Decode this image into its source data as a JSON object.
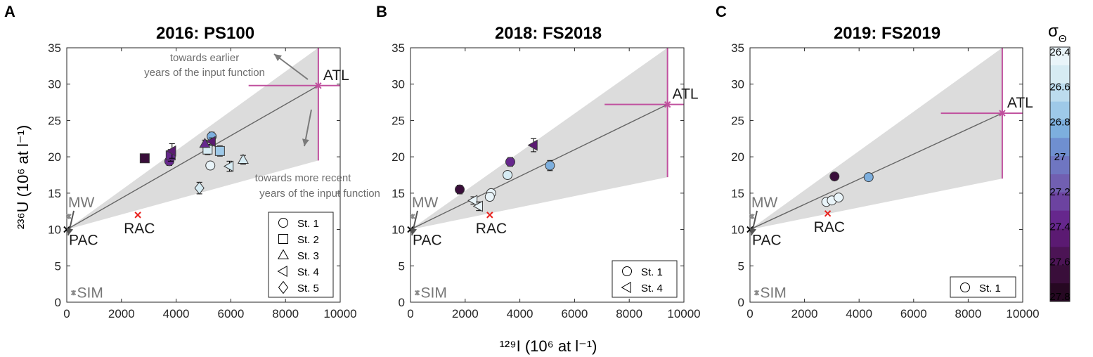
{
  "figure": {
    "ylabel": "²³⁶U (10⁶ at l⁻¹)",
    "xlabel": "¹²⁹I (10⁶ at l⁻¹)",
    "colorbar": {
      "symbol": "σΘ",
      "ticks": [
        "26.4",
        "26.6",
        "26.8",
        "27",
        "27.2",
        "27.4",
        "27.6",
        "27.8"
      ],
      "colors": [
        "#e9f4f9",
        "#d6ebf3",
        "#bcdcee",
        "#9ec9e8",
        "#7dafde",
        "#6f8fd0",
        "#6f76c1",
        "#715fb1",
        "#6c43a0",
        "#66278d",
        "#5b1a72",
        "#4c1455",
        "#390e3a",
        "#260822"
      ]
    }
  },
  "chart_data": [
    {
      "type": "scatter",
      "panel": "A",
      "title": "2016: PS100",
      "xlim": [
        0,
        10000
      ],
      "ylim": [
        0,
        35
      ],
      "xticks": [
        "0",
        "2000",
        "4000",
        "6000",
        "8000",
        "10000"
      ],
      "yticks": [
        "0",
        "5",
        "10",
        "15",
        "20",
        "25",
        "30",
        "35"
      ],
      "wedge": {
        "origin": [
          0,
          10
        ],
        "upper_end": [
          9200,
          35
        ],
        "lower_end": [
          9200,
          19.5
        ]
      },
      "mix_line": {
        "from": [
          0,
          10
        ],
        "to": [
          9200,
          29.8
        ]
      },
      "refs": [
        {
          "label": "PAC",
          "x": 0,
          "y": 10,
          "color": "#000000"
        },
        {
          "label": "RAC",
          "x": 2600,
          "y": 12,
          "color": "#e8211d"
        },
        {
          "label": "ATL",
          "x": 9200,
          "y": 29.8,
          "color": "#c0509e",
          "xerr": [
            6650,
            10000
          ],
          "yerr": [
            19.5,
            35
          ]
        },
        {
          "label": "MW",
          "x": 0,
          "y": 11.8,
          "color": "#8a8a8a"
        },
        {
          "label": "SIM",
          "x": 400,
          "y": 1,
          "color": "#8a8a8a"
        }
      ],
      "annotations": [
        "towards earlier",
        "years of the input function",
        "towards more recent",
        "years of the input function"
      ],
      "legend": [
        "St. 1",
        "St. 2",
        "St. 3",
        "St. 4",
        "St. 5"
      ],
      "points": [
        {
          "marker": "circle",
          "x": 3750,
          "y": 19.4,
          "err": 0.6,
          "sigma": 27.4
        },
        {
          "marker": "circle",
          "x": 5300,
          "y": 22.8,
          "err": 0.6,
          "sigma": 26.9
        },
        {
          "marker": "circle",
          "x": 5250,
          "y": 18.8,
          "err": 0.5,
          "sigma": 26.4
        },
        {
          "marker": "square",
          "x": 2850,
          "y": 19.8,
          "err": 0.5,
          "sigma": 27.6
        },
        {
          "marker": "square",
          "x": 3800,
          "y": 20.2,
          "err": 0.8,
          "sigma": 27.4
        },
        {
          "marker": "square",
          "x": 5150,
          "y": 21.0,
          "err": 0.7,
          "sigma": 26.5
        },
        {
          "marker": "square",
          "x": 5600,
          "y": 20.8,
          "err": 0.7,
          "sigma": 26.7
        },
        {
          "marker": "triangle",
          "x": 5050,
          "y": 21.8,
          "err": 0.5,
          "sigma": 27.4
        },
        {
          "marker": "triangle",
          "x": 6450,
          "y": 19.6,
          "err": 0.6,
          "sigma": 26.5
        },
        {
          "marker": "tri-left",
          "x": 3850,
          "y": 20.8,
          "err": 1.0,
          "sigma": 27.5
        },
        {
          "marker": "tri-left",
          "x": 5300,
          "y": 22.1,
          "err": 0.5,
          "sigma": 27.5
        },
        {
          "marker": "tri-left",
          "x": 5950,
          "y": 18.7,
          "err": 0.7,
          "sigma": 26.5
        },
        {
          "marker": "diamond",
          "x": 4850,
          "y": 15.7,
          "err": 0.8,
          "sigma": 26.5
        }
      ]
    },
    {
      "type": "scatter",
      "panel": "B",
      "title": "2018: FS2018",
      "xlim": [
        0,
        10000
      ],
      "ylim": [
        0,
        35
      ],
      "xticks": [
        "0",
        "2000",
        "4000",
        "6000",
        "8000",
        "10000"
      ],
      "yticks": [
        "0",
        "5",
        "10",
        "15",
        "20",
        "25",
        "30",
        "35"
      ],
      "wedge": {
        "origin": [
          0,
          10
        ],
        "upper_end": [
          9400,
          35
        ],
        "lower_end": [
          9400,
          17.2
        ]
      },
      "mix_line": {
        "from": [
          0,
          10
        ],
        "to": [
          9400,
          27.2
        ]
      },
      "refs": [
        {
          "label": "PAC",
          "x": 0,
          "y": 10,
          "color": "#000000"
        },
        {
          "label": "RAC",
          "x": 2900,
          "y": 12,
          "color": "#e8211d"
        },
        {
          "label": "ATL",
          "x": 9400,
          "y": 27.2,
          "color": "#c0509e",
          "xerr": [
            7100,
            10000
          ],
          "yerr": [
            17.2,
            35
          ]
        },
        {
          "label": "MW",
          "x": 0,
          "y": 11.8,
          "color": "#8a8a8a"
        },
        {
          "label": "SIM",
          "x": 400,
          "y": 1,
          "color": "#8a8a8a"
        }
      ],
      "legend": [
        "St. 1",
        "St. 4"
      ],
      "points": [
        {
          "marker": "circle",
          "x": 1800,
          "y": 15.5,
          "err": 0.6,
          "sigma": 27.7
        },
        {
          "marker": "circle",
          "x": 3650,
          "y": 19.3,
          "err": 0.6,
          "sigma": 27.3
        },
        {
          "marker": "circle",
          "x": 3550,
          "y": 17.5,
          "err": 0.5,
          "sigma": 26.5
        },
        {
          "marker": "circle",
          "x": 2950,
          "y": 15.0,
          "err": 0.5,
          "sigma": 26.4
        },
        {
          "marker": "circle",
          "x": 2900,
          "y": 14.5,
          "err": 0.5,
          "sigma": 26.4
        },
        {
          "marker": "circle",
          "x": 5100,
          "y": 18.8,
          "err": 0.7,
          "sigma": 26.9
        },
        {
          "marker": "tri-left",
          "x": 4500,
          "y": 21.6,
          "err": 0.9,
          "sigma": 27.5
        },
        {
          "marker": "tri-left",
          "x": 2300,
          "y": 14.0,
          "err": 0.5,
          "sigma": 26.4
        },
        {
          "marker": "tri-left",
          "x": 2500,
          "y": 13.2,
          "err": 0.6,
          "sigma": 26.4
        }
      ]
    },
    {
      "type": "scatter",
      "panel": "C",
      "title": "2019: FS2019",
      "xlim": [
        0,
        10000
      ],
      "ylim": [
        0,
        35
      ],
      "xticks": [
        "0",
        "2000",
        "4000",
        "6000",
        "8000",
        "10000"
      ],
      "yticks": [
        "0",
        "5",
        "10",
        "15",
        "20",
        "25",
        "30",
        "35"
      ],
      "wedge": {
        "origin": [
          0,
          10
        ],
        "upper_end": [
          9250,
          35
        ],
        "lower_end": [
          9250,
          17.0
        ]
      },
      "mix_line": {
        "from": [
          0,
          10
        ],
        "to": [
          9250,
          26.0
        ]
      },
      "refs": [
        {
          "label": "PAC",
          "x": 0,
          "y": 10,
          "color": "#000000"
        },
        {
          "label": "RAC",
          "x": 2850,
          "y": 12.2,
          "color": "#e8211d"
        },
        {
          "label": "ATL",
          "x": 9250,
          "y": 26.0,
          "color": "#c0509e",
          "xerr": [
            7000,
            10000
          ],
          "yerr": [
            17.0,
            35
          ]
        },
        {
          "label": "MW",
          "x": 0,
          "y": 11.8,
          "color": "#8a8a8a"
        },
        {
          "label": "SIM",
          "x": 400,
          "y": 1,
          "color": "#8a8a8a"
        }
      ],
      "legend": [
        "St. 1"
      ],
      "points": [
        {
          "marker": "circle",
          "x": 3100,
          "y": 17.3,
          "err": 0.3,
          "sigma": 27.6
        },
        {
          "marker": "circle",
          "x": 4350,
          "y": 17.2,
          "err": 0.3,
          "sigma": 26.9
        },
        {
          "marker": "circle",
          "x": 2800,
          "y": 13.8,
          "err": 0.3,
          "sigma": 26.4
        },
        {
          "marker": "circle",
          "x": 3000,
          "y": 14.0,
          "err": 0.3,
          "sigma": 26.4
        },
        {
          "marker": "circle",
          "x": 3250,
          "y": 14.4,
          "err": 0.3,
          "sigma": 26.4
        }
      ]
    }
  ]
}
